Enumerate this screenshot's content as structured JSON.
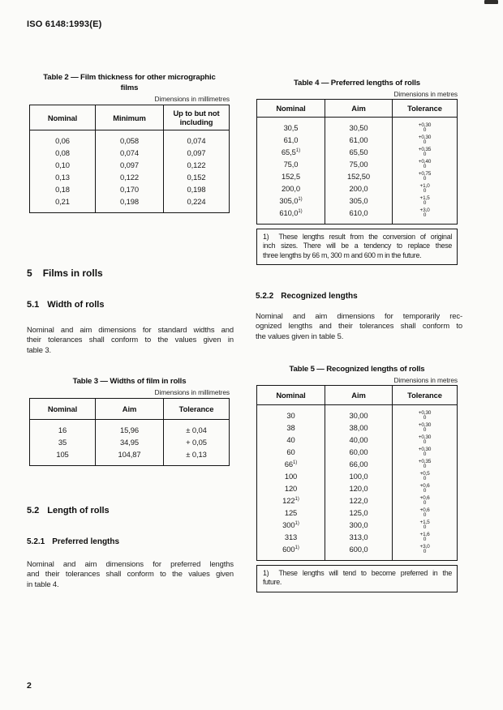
{
  "page": {
    "header_code": "ISO 6148:1993(E)",
    "page_number": "2"
  },
  "table2": {
    "title_lines": [
      "Table 2 — Film thickness for other micrographic",
      "films"
    ],
    "dimensions_note": "Dimensions in millimetres",
    "headers": [
      "Nominal",
      "Minimum",
      "Up to but not including"
    ],
    "rows": [
      [
        "0,06",
        "0,058",
        "0,074"
      ],
      [
        "0,08",
        "0,074",
        "0,097"
      ],
      [
        "0,10",
        "0,097",
        "0,122"
      ],
      [
        "0,13",
        "0,122",
        "0,152"
      ],
      [
        "0,18",
        "0,170",
        "0,198"
      ],
      [
        "0,21",
        "0,198",
        "0,224"
      ]
    ]
  },
  "table3": {
    "title_lines": [
      "Table 3 — Widths of film in rolls"
    ],
    "dimensions_note": "Dimensions in millimetres",
    "headers": [
      "Nominal",
      "Aim",
      "Tolerance"
    ],
    "rows": [
      [
        "16",
        "15,96",
        "± 0,04"
      ],
      [
        "35",
        "34,95",
        "+ 0,05"
      ],
      [
        "105",
        "104,87",
        "± 0,13"
      ]
    ]
  },
  "table4": {
    "title_lines": [
      "Table 4 — Preferred lengths of rolls"
    ],
    "dimensions_note": "Dimensions in metres",
    "headers": [
      "Nominal",
      "Aim",
      "Tolerance"
    ],
    "rows": [
      {
        "nominal": "30,5",
        "aim": "30,50",
        "tol_upper": "+0,30",
        "tol_lower": "0"
      },
      {
        "nominal": "61,0",
        "aim": "61,00",
        "tol_upper": "+0,30",
        "tol_lower": "0"
      },
      {
        "nominal": "65,5",
        "sup": "1)",
        "aim": "65,50",
        "tol_upper": "+0,35",
        "tol_lower": "0"
      },
      {
        "nominal": "75,0",
        "aim": "75,00",
        "tol_upper": "+0,40",
        "tol_lower": "0"
      },
      {
        "nominal": "152,5",
        "aim": "152,50",
        "tol_upper": "+0,75",
        "tol_lower": "0"
      },
      {
        "nominal": "200,0",
        "aim": "200,0",
        "tol_upper": "+1,0",
        "tol_lower": "0"
      },
      {
        "nominal": "305,0",
        "sup": "1)",
        "aim": "305,0",
        "tol_upper": "+1,5",
        "tol_lower": "0"
      },
      {
        "nominal": "610,0",
        "sup": "1)",
        "aim": "610,0",
        "tol_upper": "+3,0",
        "tol_lower": "0"
      }
    ],
    "footnote_lines": [
      "1)  These lengths result from the conversion of original",
      "inch sizes. There will be a tendency to replace these",
      "three lengths by 66 m, 300 m and 600 m in the future."
    ]
  },
  "table5": {
    "title_lines": [
      "Table 5 — Recognized lengths of rolls"
    ],
    "dimensions_note": "Dimensions in metres",
    "headers": [
      "Nominal",
      "Aim",
      "Tolerance"
    ],
    "rows": [
      {
        "nominal": "30",
        "aim": "30,00",
        "tol_upper": "+0,30",
        "tol_lower": "0"
      },
      {
        "nominal": "38",
        "aim": "38,00",
        "tol_upper": "+0,30",
        "tol_lower": "0"
      },
      {
        "nominal": "40",
        "aim": "40,00",
        "tol_upper": "+0,30",
        "tol_lower": "0"
      },
      {
        "nominal": "60",
        "aim": "60,00",
        "tol_upper": "+0,30",
        "tol_lower": "0"
      },
      {
        "nominal": "66",
        "sup": "1)",
        "aim": "66,00",
        "tol_upper": "+0,35",
        "tol_lower": "0"
      },
      {
        "nominal": "100",
        "aim": "100,0",
        "tol_upper": "+0,5",
        "tol_lower": "0"
      },
      {
        "nominal": "120",
        "aim": "120,0",
        "tol_upper": "+0,6",
        "tol_lower": "0"
      },
      {
        "nominal": "122",
        "sup": "1)",
        "aim": "122,0",
        "tol_upper": "+0,6",
        "tol_lower": "0"
      },
      {
        "nominal": "125",
        "aim": "125,0",
        "tol_upper": "+0,6",
        "tol_lower": "0"
      },
      {
        "nominal": "300",
        "sup": "1)",
        "aim": "300,0",
        "tol_upper": "+1,5",
        "tol_lower": "0"
      },
      {
        "nominal": "313",
        "aim": "313,0",
        "tol_upper": "+1,6",
        "tol_lower": "0"
      },
      {
        "nominal": "600",
        "sup": "1)",
        "aim": "600,0",
        "tol_upper": "+3,0",
        "tol_lower": "0"
      }
    ],
    "footnote_lines": [
      "1)  These lengths will tend to become preferred in the",
      "future."
    ]
  },
  "sections": {
    "s5": {
      "number": "5",
      "title": "Films in rolls"
    },
    "s51": {
      "number": "5.1",
      "title": "Width of rolls"
    },
    "s51_para_lines": [
      "Nominal and aim dimensions for standard widths and",
      "their tolerances shall conform to the values given in",
      "table 3."
    ],
    "s52": {
      "number": "5.2",
      "title": "Length of rolls"
    },
    "s521": {
      "number": "5.2.1",
      "title": "Preferred lengths"
    },
    "s521_para_lines": [
      "Nominal and aim dimensions for preferred lengths",
      "and their tolerances shall conform to the values given",
      "in table 4."
    ],
    "s522": {
      "number": "5.2.2",
      "title": "Recognized lengths"
    },
    "s522_para_lines": [
      "Nominal and aim dimensions for temporarily rec-",
      "ognized lengths and their tolerances shall conform to",
      "the values given in table 5."
    ]
  }
}
